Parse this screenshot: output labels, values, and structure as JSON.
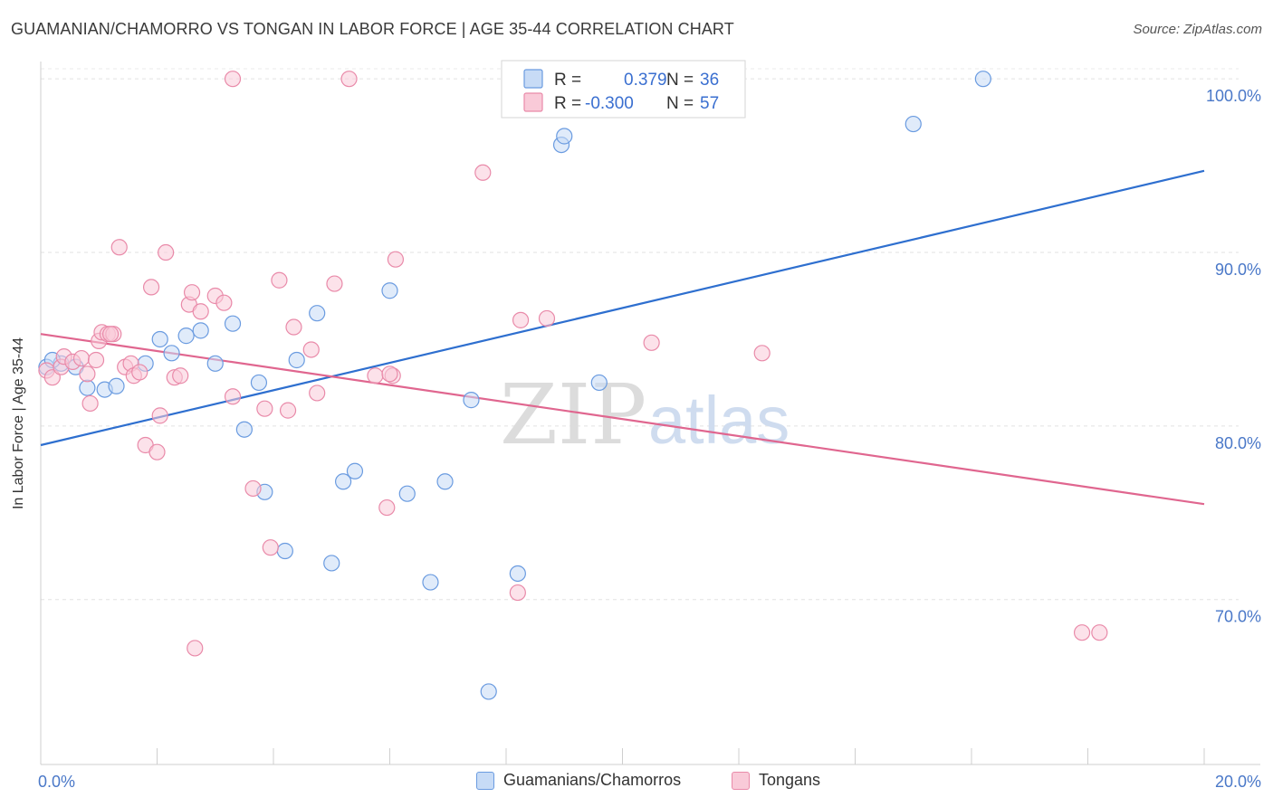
{
  "header": {
    "title": "GUAMANIAN/CHAMORRO VS TONGAN IN LABOR FORCE | AGE 35-44 CORRELATION CHART",
    "source": "Source: ZipAtlas.com"
  },
  "watermark": {
    "zip": "ZIP",
    "atlas": "atlas"
  },
  "legend": {
    "rows": [
      {
        "r_label": "R =",
        "r_value": "0.379",
        "n_label": "N =",
        "n_value": "36"
      },
      {
        "r_label": "R =",
        "r_value": "-0.300",
        "n_label": "N =",
        "n_value": "57"
      }
    ]
  },
  "bottom_legend": {
    "items": [
      "Guamanians/Chamorros",
      "Tongans"
    ]
  },
  "colors": {
    "blue_fill": "#c7dbf6",
    "blue_stroke": "#6a9be0",
    "blue_line": "#2e6fcf",
    "pink_fill": "#f9cad8",
    "pink_stroke": "#e98aa9",
    "pink_line": "#e0668f",
    "value_text": "#3a6fd0"
  },
  "chart_data": {
    "type": "scatter",
    "title": "GUAMANIAN/CHAMORRO VS TONGAN IN LABOR FORCE | AGE 35-44 CORRELATION CHART",
    "xlabel": "",
    "ylabel": "In Labor Force | Age 35-44",
    "xlim": [
      0,
      20
    ],
    "ylim": [
      60.5,
      101
    ],
    "x_tick_labels": [
      {
        "value": 0,
        "label": "0.0%"
      },
      {
        "value": 20,
        "label": "20.0%"
      }
    ],
    "y_tick_labels": [
      {
        "value": 100,
        "label": "100.0%"
      },
      {
        "value": 90,
        "label": "90.0%"
      },
      {
        "value": 80,
        "label": "80.0%"
      },
      {
        "value": 70,
        "label": "70.0%"
      }
    ],
    "x_minor_ticks": [
      0,
      2,
      4,
      6,
      8,
      10,
      12,
      14,
      16,
      18,
      20
    ],
    "grid": true,
    "legend_position": "top-center",
    "series": [
      {
        "name": "Guamanians/Chamorros",
        "color": "#6a9be0",
        "trend": {
          "x": [
            0,
            20
          ],
          "y": [
            78.9,
            94.7
          ]
        },
        "points": [
          [
            0.1,
            83.4
          ],
          [
            0.35,
            83.6
          ],
          [
            0.6,
            83.4
          ],
          [
            0.8,
            82.2
          ],
          [
            1.1,
            82.1
          ],
          [
            1.3,
            82.3
          ],
          [
            1.8,
            83.6
          ],
          [
            2.05,
            85.0
          ],
          [
            2.25,
            84.2
          ],
          [
            2.5,
            85.2
          ],
          [
            2.75,
            85.5
          ],
          [
            3.0,
            83.6
          ],
          [
            3.3,
            85.9
          ],
          [
            3.5,
            79.8
          ],
          [
            3.75,
            82.5
          ],
          [
            3.85,
            76.2
          ],
          [
            4.2,
            72.8
          ],
          [
            4.4,
            83.8
          ],
          [
            4.75,
            86.5
          ],
          [
            5.0,
            72.1
          ],
          [
            5.2,
            76.8
          ],
          [
            5.4,
            77.4
          ],
          [
            6.0,
            87.8
          ],
          [
            6.3,
            76.1
          ],
          [
            6.7,
            71.0
          ],
          [
            6.95,
            76.8
          ],
          [
            7.4,
            81.5
          ],
          [
            7.7,
            64.7
          ],
          [
            8.2,
            71.5
          ],
          [
            8.95,
            96.2
          ],
          [
            9.0,
            96.7
          ],
          [
            9.6,
            82.5
          ],
          [
            10.3,
            100.0
          ],
          [
            15.0,
            97.4
          ],
          [
            16.2,
            100.0
          ],
          [
            0.2,
            83.8
          ]
        ]
      },
      {
        "name": "Tongans",
        "color": "#e98aa9",
        "trend": {
          "x": [
            0,
            20
          ],
          "y": [
            85.3,
            75.5
          ]
        },
        "points": [
          [
            0.1,
            83.2
          ],
          [
            0.2,
            82.8
          ],
          [
            0.35,
            83.4
          ],
          [
            0.4,
            84.0
          ],
          [
            0.55,
            83.7
          ],
          [
            0.7,
            83.9
          ],
          [
            0.8,
            83.0
          ],
          [
            0.85,
            81.3
          ],
          [
            0.95,
            83.8
          ],
          [
            1.0,
            84.9
          ],
          [
            1.05,
            85.4
          ],
          [
            1.15,
            85.3
          ],
          [
            1.25,
            85.3
          ],
          [
            1.35,
            90.3
          ],
          [
            1.45,
            83.4
          ],
          [
            1.55,
            83.6
          ],
          [
            1.6,
            82.9
          ],
          [
            1.7,
            83.1
          ],
          [
            1.8,
            78.9
          ],
          [
            1.9,
            88.0
          ],
          [
            2.0,
            78.5
          ],
          [
            2.05,
            80.6
          ],
          [
            2.15,
            90.0
          ],
          [
            2.3,
            82.8
          ],
          [
            2.4,
            82.9
          ],
          [
            2.55,
            87.0
          ],
          [
            2.6,
            87.7
          ],
          [
            2.65,
            67.2
          ],
          [
            2.75,
            86.6
          ],
          [
            3.0,
            87.5
          ],
          [
            3.15,
            87.1
          ],
          [
            3.3,
            81.7
          ],
          [
            3.3,
            100.0
          ],
          [
            3.65,
            76.4
          ],
          [
            3.85,
            81.0
          ],
          [
            3.95,
            73.0
          ],
          [
            4.1,
            88.4
          ],
          [
            4.25,
            80.9
          ],
          [
            4.35,
            85.7
          ],
          [
            4.65,
            84.4
          ],
          [
            4.75,
            81.9
          ],
          [
            5.05,
            88.2
          ],
          [
            5.3,
            100.0
          ],
          [
            5.75,
            82.9
          ],
          [
            5.95,
            75.3
          ],
          [
            6.05,
            82.9
          ],
          [
            6.1,
            89.6
          ],
          [
            7.6,
            94.6
          ],
          [
            8.2,
            70.4
          ],
          [
            8.25,
            86.1
          ],
          [
            8.7,
            86.2
          ],
          [
            10.5,
            84.8
          ],
          [
            12.4,
            84.2
          ],
          [
            17.9,
            68.1
          ],
          [
            18.2,
            68.1
          ],
          [
            6.0,
            83.0
          ],
          [
            1.2,
            85.3
          ]
        ]
      }
    ]
  }
}
